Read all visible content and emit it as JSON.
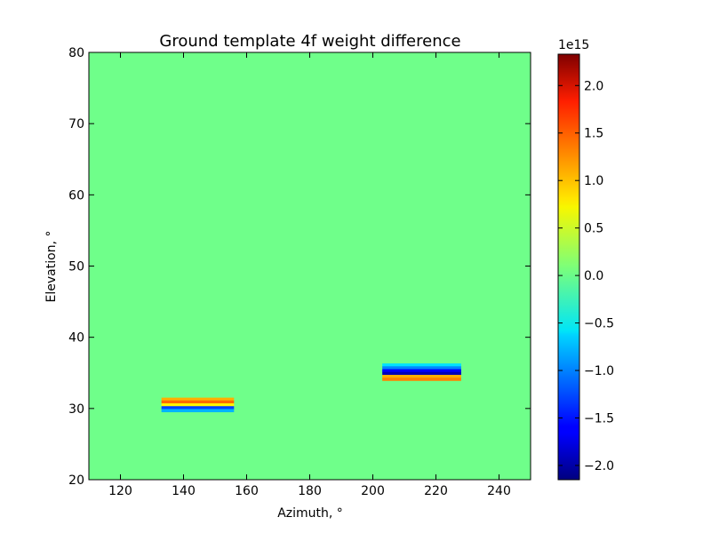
{
  "chart_data": {
    "type": "heatmap",
    "title": "Ground template 4f weight difference",
    "xlabel": "Azimuth, °",
    "ylabel": "Elevation, °",
    "xlim": [
      110,
      250
    ],
    "ylim": [
      20,
      80
    ],
    "x_ticks": [
      120,
      140,
      160,
      180,
      200,
      220,
      240
    ],
    "y_ticks": [
      20,
      30,
      40,
      50,
      60,
      70,
      80
    ],
    "grid": false,
    "background_value": 0.0,
    "colorbar": {
      "colormap": "jet",
      "min": -2.15,
      "max": 2.33,
      "offset_label": "1e15",
      "ticks": [
        -2.0,
        -1.5,
        -1.0,
        -0.5,
        0.0,
        0.5,
        1.0,
        1.5,
        2.0
      ],
      "tick_labels": [
        "−2.0",
        "−1.5",
        "−1.0",
        "−0.5",
        "0.0",
        "0.5",
        "1.0",
        "1.5",
        "2.0"
      ]
    },
    "features": [
      {
        "az_range": [
          133,
          156
        ],
        "rows": [
          {
            "el": 31.3,
            "value": 1.0
          },
          {
            "el": 30.9,
            "value": 1.3
          },
          {
            "el": 30.5,
            "value": 0.7
          },
          {
            "el": 30.1,
            "value": -1.3
          },
          {
            "el": 29.7,
            "value": -0.8
          }
        ]
      },
      {
        "az_range": [
          203,
          228
        ],
        "rows": [
          {
            "el": 36.1,
            "value": -0.6
          },
          {
            "el": 35.7,
            "value": -1.0
          },
          {
            "el": 35.3,
            "value": -1.6
          },
          {
            "el": 34.9,
            "value": -1.9
          },
          {
            "el": 34.5,
            "value": 1.0
          },
          {
            "el": 34.1,
            "value": 1.2
          }
        ]
      }
    ]
  }
}
